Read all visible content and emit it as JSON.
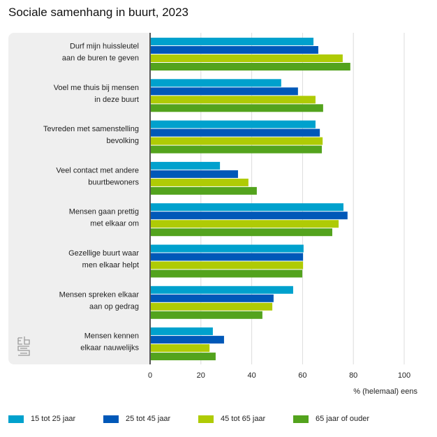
{
  "title": "Sociale samenhang in buurt, 2023",
  "chart_data": {
    "type": "bar",
    "orientation": "horizontal",
    "title": "Sociale samenhang in buurt, 2023",
    "xlabel": "% (helemaal) eens",
    "ylabel": "",
    "xlim": [
      0,
      100
    ],
    "xticks": [
      0,
      20,
      40,
      60,
      80,
      100
    ],
    "grid": true,
    "legend_position": "bottom",
    "categories": [
      [
        "Durf mijn huissleutel",
        "aan de buren te geven"
      ],
      [
        "Voel me thuis bij mensen",
        "in deze buurt"
      ],
      [
        "Tevreden met samenstelling",
        "bevolking"
      ],
      [
        "Veel contact met andere",
        "buurtbewoners"
      ],
      [
        "Mensen gaan prettig",
        "met elkaar om"
      ],
      [
        "Gezellige buurt waar",
        "men elkaar helpt"
      ],
      [
        "Mensen spreken elkaar",
        "aan op gedrag"
      ],
      [
        "Mensen kennen",
        "elkaar nauwelijks"
      ]
    ],
    "series": [
      {
        "name": "15 tot 25 jaar",
        "color": "#00a1cd",
        "values": [
          64.3,
          51.6,
          65.1,
          27.5,
          76.1,
          60.4,
          56.3,
          24.7
        ]
      },
      {
        "name": "25 tot 45 jaar",
        "color": "#0058b8",
        "values": [
          66.2,
          58.2,
          66.8,
          34.6,
          77.7,
          60.2,
          48.6,
          29.1
        ]
      },
      {
        "name": "45 tot 65 jaar",
        "color": "#afcb05",
        "values": [
          75.8,
          65.1,
          67.9,
          38.7,
          74.2,
          60.2,
          48.1,
          23.4
        ]
      },
      {
        "name": "65 jaar of ouder",
        "color": "#53a31d",
        "values": [
          78.8,
          68.1,
          67.6,
          42.0,
          71.7,
          59.9,
          44.2,
          25.8
        ]
      }
    ]
  },
  "logo": {
    "icon": "cbs-logo-icon"
  }
}
